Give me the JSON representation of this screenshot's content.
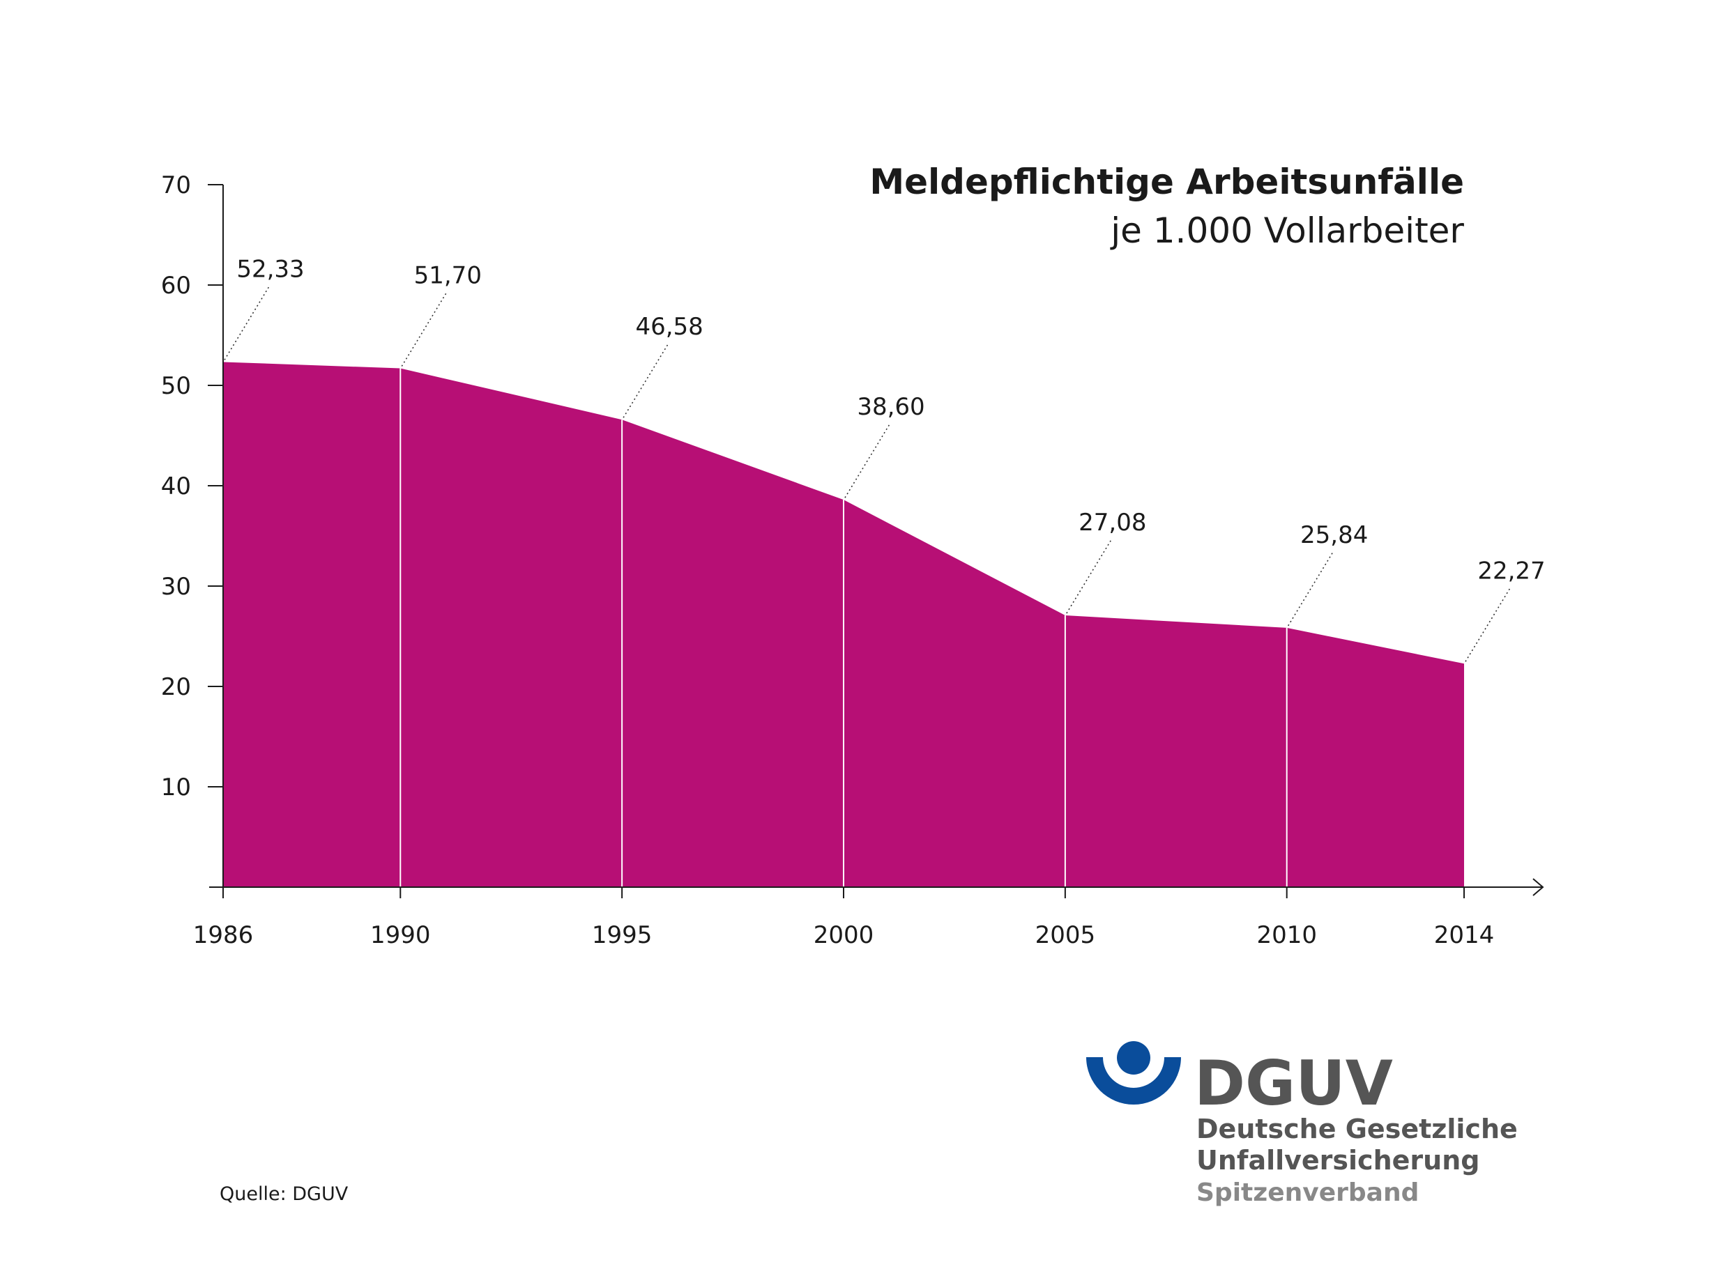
{
  "chart_data": {
    "type": "area",
    "title": "Meldepflichtige Arbeitsunfälle",
    "subtitle": "je 1.000 Vollarbeiter",
    "x": [
      "1986",
      "1990",
      "1995",
      "2000",
      "2005",
      "2010",
      "2014"
    ],
    "x_numeric": [
      1986,
      1990,
      1995,
      2000,
      2005,
      2010,
      2014
    ],
    "values": [
      52.33,
      51.7,
      46.58,
      38.6,
      27.08,
      25.84,
      22.27
    ],
    "value_labels": [
      "52,33",
      "51,70",
      "46,58",
      "38,60",
      "27,08",
      "25,84",
      "22,27"
    ],
    "y_ticks": [
      "10",
      "20",
      "30",
      "40",
      "50",
      "60",
      "70"
    ],
    "ylim": [
      0,
      70
    ],
    "fill_color": "#b70f75",
    "grid": false,
    "xlabel": "",
    "ylabel": ""
  },
  "footer": {
    "source": "Quelle: DGUV"
  },
  "logo": {
    "name": "DGUV",
    "line1": "Deutsche Gesetzliche",
    "line2": "Unfallversicherung",
    "line3": "Spitzenverband",
    "blue": "#0a4d9b"
  }
}
